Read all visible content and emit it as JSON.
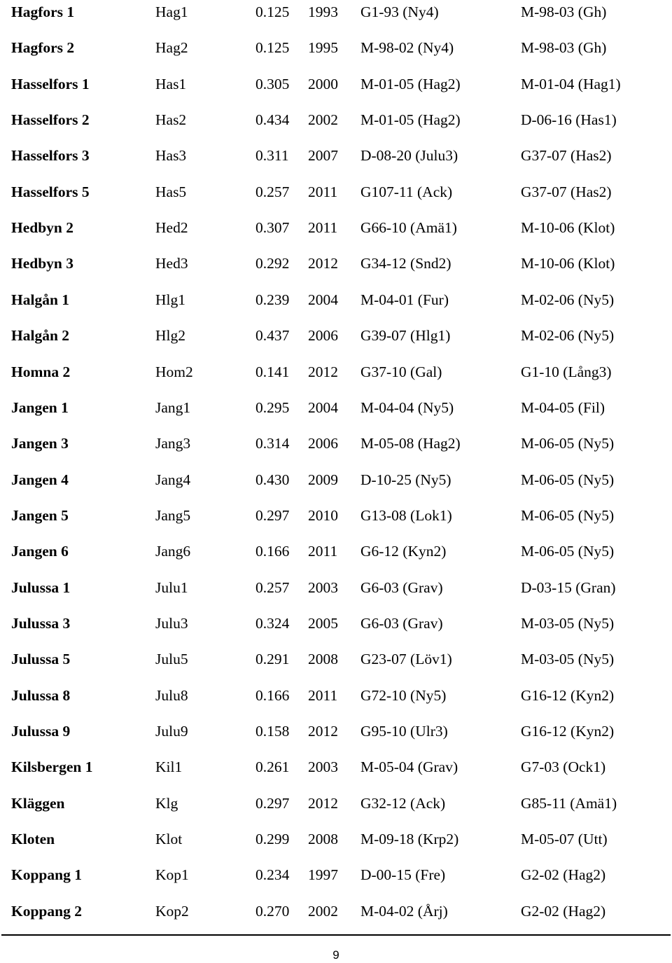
{
  "table": {
    "rows": [
      {
        "name": "Hagfors 1",
        "code": "Hag1",
        "value": "0.125",
        "year": "1993",
        "father": "G1-93 (Ny4)",
        "mother": "M-98-03 (Gh)"
      },
      {
        "name": "Hagfors 2",
        "code": "Hag2",
        "value": "0.125",
        "year": "1995",
        "father": "M-98-02 (Ny4)",
        "mother": "M-98-03 (Gh)"
      },
      {
        "name": "Hasselfors 1",
        "code": "Has1",
        "value": "0.305",
        "year": "2000",
        "father": "M-01-05 (Hag2)",
        "mother": "M-01-04 (Hag1)"
      },
      {
        "name": "Hasselfors 2",
        "code": "Has2",
        "value": "0.434",
        "year": "2002",
        "father": "M-01-05 (Hag2)",
        "mother": "D-06-16 (Has1)"
      },
      {
        "name": "Hasselfors 3",
        "code": "Has3",
        "value": "0.311",
        "year": "2007",
        "father": "D-08-20 (Julu3)",
        "mother": "G37-07 (Has2)"
      },
      {
        "name": "Hasselfors 5",
        "code": "Has5",
        "value": "0.257",
        "year": "2011",
        "father": "G107-11 (Ack)",
        "mother": "G37-07 (Has2)"
      },
      {
        "name": "Hedbyn 2",
        "code": "Hed2",
        "value": "0.307",
        "year": "2011",
        "father": "G66-10 (Amä1)",
        "mother": "M-10-06 (Klot)"
      },
      {
        "name": "Hedbyn 3",
        "code": "Hed3",
        "value": "0.292",
        "year": "2012",
        "father": "G34-12 (Snd2)",
        "mother": "M-10-06 (Klot)"
      },
      {
        "name": "Halgån 1",
        "code": "Hlg1",
        "value": "0.239",
        "year": "2004",
        "father": "M-04-01 (Fur)",
        "mother": "M-02-06 (Ny5)"
      },
      {
        "name": "Halgån 2",
        "code": "Hlg2",
        "value": "0.437",
        "year": "2006",
        "father": "G39-07 (Hlg1)",
        "mother": "M-02-06 (Ny5)"
      },
      {
        "name": "Homna 2",
        "code": "Hom2",
        "value": "0.141",
        "year": "2012",
        "father": "G37-10 (Gal)",
        "mother": "G1-10 (Lång3)"
      },
      {
        "name": "Jangen 1",
        "code": "Jang1",
        "value": "0.295",
        "year": "2004",
        "father": "M-04-04 (Ny5)",
        "mother": "M-04-05 (Fil)"
      },
      {
        "name": "Jangen 3",
        "code": "Jang3",
        "value": "0.314",
        "year": "2006",
        "father": "M-05-08 (Hag2)",
        "mother": "M-06-05 (Ny5)"
      },
      {
        "name": "Jangen 4",
        "code": "Jang4",
        "value": "0.430",
        "year": "2009",
        "father": "D-10-25 (Ny5)",
        "mother": "M-06-05 (Ny5)"
      },
      {
        "name": "Jangen 5",
        "code": "Jang5",
        "value": "0.297",
        "year": "2010",
        "father": "G13-08 (Lok1)",
        "mother": "M-06-05 (Ny5)"
      },
      {
        "name": "Jangen 6",
        "code": "Jang6",
        "value": "0.166",
        "year": "2011",
        "father": "G6-12 (Kyn2)",
        "mother": "M-06-05 (Ny5)"
      },
      {
        "name": "Julussa 1",
        "code": "Julu1",
        "value": "0.257",
        "year": "2003",
        "father": "G6-03 (Grav)",
        "mother": "D-03-15 (Gran)"
      },
      {
        "name": "Julussa 3",
        "code": "Julu3",
        "value": "0.324",
        "year": "2005",
        "father": "G6-03 (Grav)",
        "mother": "M-03-05 (Ny5)"
      },
      {
        "name": "Julussa 5",
        "code": "Julu5",
        "value": "0.291",
        "year": "2008",
        "father": "G23-07 (Löv1)",
        "mother": "M-03-05 (Ny5)"
      },
      {
        "name": "Julussa 8",
        "code": "Julu8",
        "value": "0.166",
        "year": "2011",
        "father": "G72-10 (Ny5)",
        "mother": "G16-12 (Kyn2)"
      },
      {
        "name": "Julussa 9",
        "code": "Julu9",
        "value": "0.158",
        "year": "2012",
        "father": "G95-10 (Ulr3)",
        "mother": "G16-12 (Kyn2)"
      },
      {
        "name": "Kilsbergen 1",
        "code": "Kil1",
        "value": "0.261",
        "year": "2003",
        "father": "M-05-04 (Grav)",
        "mother": "G7-03 (Ock1)"
      },
      {
        "name": "Kläggen",
        "code": "Klg",
        "value": "0.297",
        "year": "2012",
        "father": "G32-12 (Ack)",
        "mother": "G85-11 (Amä1)"
      },
      {
        "name": "Kloten",
        "code": "Klot",
        "value": "0.299",
        "year": "2008",
        "father": "M-09-18 (Krp2)",
        "mother": "M-05-07 (Utt)"
      },
      {
        "name": "Koppang 1",
        "code": "Kop1",
        "value": "0.234",
        "year": "1997",
        "father": "D-00-15 (Fre)",
        "mother": "G2-02 (Hag2)"
      },
      {
        "name": "Koppang 2",
        "code": "Kop2",
        "value": "0.270",
        "year": "2002",
        "father": "M-04-02 (Årj)",
        "mother": "G2-02 (Hag2)"
      }
    ]
  },
  "footer": {
    "page_number": "9"
  }
}
